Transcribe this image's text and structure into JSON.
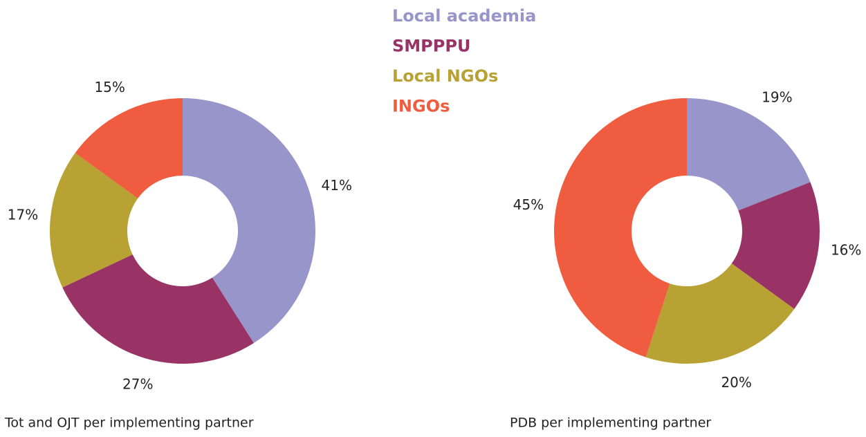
{
  "legend": {
    "items": [
      "Local academia",
      "SMPPPU",
      "Local NGOs",
      "INGOs"
    ],
    "colors": [
      "#9795c9",
      "#993366",
      "#b8a233",
      "#f05c40"
    ]
  },
  "chart_data": [
    {
      "type": "donut",
      "title": "Tot and OJT per implementing partner",
      "values": [
        41,
        27,
        17,
        15
      ],
      "value_labels": [
        "41%",
        "27%",
        "17%",
        "15%"
      ]
    },
    {
      "type": "donut",
      "title": "PDB per implementing partner",
      "values": [
        19,
        16,
        20,
        45
      ],
      "value_labels": [
        "19%",
        "16%",
        "20%",
        "45%"
      ]
    }
  ]
}
